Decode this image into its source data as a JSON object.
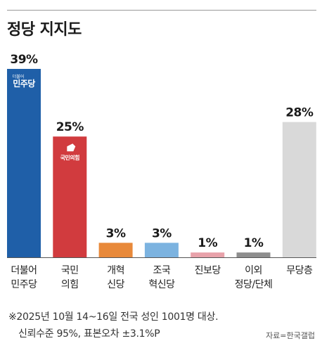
{
  "title": "정당 지지도",
  "chart_data": {
    "type": "bar",
    "categories": [
      [
        "더불어",
        "민주당"
      ],
      [
        "국민",
        "의힘"
      ],
      [
        "개혁",
        "신당"
      ],
      [
        "조국",
        "혁신당"
      ],
      [
        "진보당"
      ],
      [
        "이외",
        "정당/단체"
      ],
      [
        "무당층"
      ]
    ],
    "values": [
      39,
      25,
      3,
      3,
      1,
      1,
      28
    ],
    "value_labels": [
      "39%",
      "25%",
      "3%",
      "3%",
      "1%",
      "1%",
      "28%"
    ],
    "colors": [
      "#1f5fa8",
      "#d13b3e",
      "#e8893a",
      "#7cb3e0",
      "#e8a2aa",
      "#8e8e8e",
      "#d9d9d9"
    ],
    "logos": [
      {
        "index": 0,
        "top_text": "더불어",
        "main_text": "민주당"
      },
      {
        "index": 1,
        "main_text": "국민의힘"
      }
    ],
    "ylim": [
      0,
      39
    ],
    "grid": false,
    "legend": "none"
  },
  "footnote": {
    "line1": "※2025년 10월 14~16일 전국 성인 1001명 대상.",
    "line2": "신뢰수준 95%, 표본오차 ±3.1%P"
  },
  "source": "자료=한국갤럽"
}
